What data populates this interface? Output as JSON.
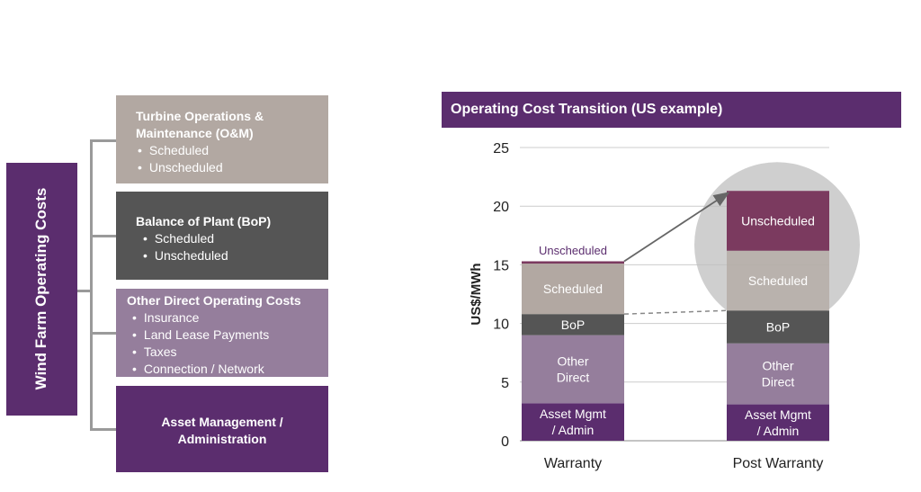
{
  "left_panel": {
    "vertical_title": "Wind Farm Operating Costs",
    "boxes": [
      {
        "title_line1": "Turbine Operations &",
        "title_line2": "Maintenance (O&M)",
        "items": [
          "Scheduled",
          "Unscheduled"
        ],
        "color": "#b2a8a2"
      },
      {
        "title_line1": "Balance of Plant (BoP)",
        "items": [
          "Scheduled",
          "Unscheduled"
        ],
        "color": "#555555"
      },
      {
        "title_line1": "Other Direct Operating Costs",
        "items": [
          "Insurance",
          "Land Lease Payments",
          "Taxes",
          "Connection / Network"
        ],
        "color": "#957e9c"
      },
      {
        "title_line1": "Asset Management /",
        "title_line2": "Administration",
        "color": "#5b2d6e"
      }
    ]
  },
  "chart_data": {
    "type": "bar",
    "stacked": true,
    "title": "Operating Cost Transition (US example)",
    "ylabel": "US$/MWh",
    "ylim": [
      0,
      25
    ],
    "yticks": [
      0,
      5,
      10,
      15,
      20,
      25
    ],
    "grid": true,
    "categories": [
      "Warranty",
      "Post Warranty"
    ],
    "series": [
      {
        "name": "Asset Mgmt / Admin",
        "label_lines": [
          "Asset Mgmt",
          "/ Admin"
        ],
        "values": [
          3.2,
          3.1
        ],
        "color": "#5b2d6e"
      },
      {
        "name": "Other Direct",
        "label_lines": [
          "Other",
          "Direct"
        ],
        "values": [
          5.8,
          5.2
        ],
        "color": "#957e9c"
      },
      {
        "name": "BoP",
        "label_lines": [
          "BoP"
        ],
        "values": [
          1.8,
          2.8
        ],
        "color": "#555555"
      },
      {
        "name": "Scheduled",
        "label_lines": [
          "Scheduled"
        ],
        "values": [
          4.3,
          5.1
        ],
        "color": "#b2a8a2"
      },
      {
        "name": "Unscheduled",
        "label_lines": [
          "Unscheduled"
        ],
        "values": [
          0.2,
          5.1
        ],
        "color": "#7b3a5f"
      }
    ],
    "annotations": [
      "Unscheduled"
    ]
  }
}
